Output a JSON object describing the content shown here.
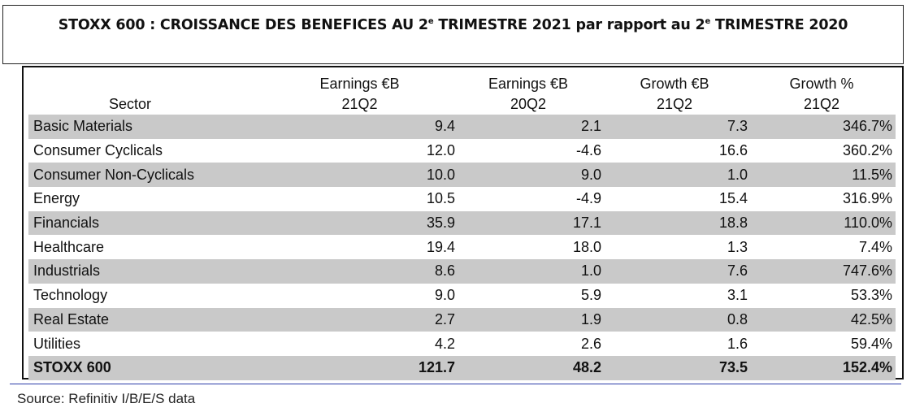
{
  "title": {
    "part1": "STOXX 600 : CROISSANCE DES BENEFICES AU 2",
    "sup1": "e",
    "part2": " TRIMESTRE 2021 par rapport au 2",
    "sup2": "e",
    "part3": " TRIMESTRE 2020"
  },
  "source": "Source: Refinitiv I/B/E/S data",
  "colors": {
    "row_shade": "#c9c9c9",
    "rule_blue": "#2a3aa8"
  },
  "chart_data": {
    "type": "table",
    "columns": [
      {
        "line1": "",
        "line2": "Sector"
      },
      {
        "line1": "Earnings €B",
        "line2": "21Q2"
      },
      {
        "line1": "Earnings €B",
        "line2": "20Q2"
      },
      {
        "line1": "Growth €B",
        "line2": "21Q2"
      },
      {
        "line1": "Growth %",
        "line2": "21Q2"
      }
    ],
    "rows": [
      {
        "sector": "Basic Materials",
        "earnings_21q2": "9.4",
        "earnings_20q2": "2.1",
        "growth_eur_b": "7.3",
        "growth_pct": "346.7%",
        "shaded": true
      },
      {
        "sector": "Consumer Cyclicals",
        "earnings_21q2": "12.0",
        "earnings_20q2": "-4.6",
        "growth_eur_b": "16.6",
        "growth_pct": "360.2%",
        "shaded": false
      },
      {
        "sector": "Consumer Non-Cyclicals",
        "earnings_21q2": "10.0",
        "earnings_20q2": "9.0",
        "growth_eur_b": "1.0",
        "growth_pct": "11.5%",
        "shaded": true
      },
      {
        "sector": "Energy",
        "earnings_21q2": "10.5",
        "earnings_20q2": "-4.9",
        "growth_eur_b": "15.4",
        "growth_pct": "316.9%",
        "shaded": false
      },
      {
        "sector": "Financials",
        "earnings_21q2": "35.9",
        "earnings_20q2": "17.1",
        "growth_eur_b": "18.8",
        "growth_pct": "110.0%",
        "shaded": true
      },
      {
        "sector": "Healthcare",
        "earnings_21q2": "19.4",
        "earnings_20q2": "18.0",
        "growth_eur_b": "1.3",
        "growth_pct": "7.4%",
        "shaded": false
      },
      {
        "sector": "Industrials",
        "earnings_21q2": "8.6",
        "earnings_20q2": "1.0",
        "growth_eur_b": "7.6",
        "growth_pct": "747.6%",
        "shaded": true
      },
      {
        "sector": "Technology",
        "earnings_21q2": "9.0",
        "earnings_20q2": "5.9",
        "growth_eur_b": "3.1",
        "growth_pct": "53.3%",
        "shaded": false
      },
      {
        "sector": "Real Estate",
        "earnings_21q2": "2.7",
        "earnings_20q2": "1.9",
        "growth_eur_b": "0.8",
        "growth_pct": "42.5%",
        "shaded": true
      },
      {
        "sector": "Utilities",
        "earnings_21q2": "4.2",
        "earnings_20q2": "2.6",
        "growth_eur_b": "1.6",
        "growth_pct": "59.4%",
        "shaded": false
      }
    ],
    "total": {
      "sector": "STOXX 600",
      "earnings_21q2": "121.7",
      "earnings_20q2": "48.2",
      "growth_eur_b": "73.5",
      "growth_pct": "152.4%"
    }
  }
}
